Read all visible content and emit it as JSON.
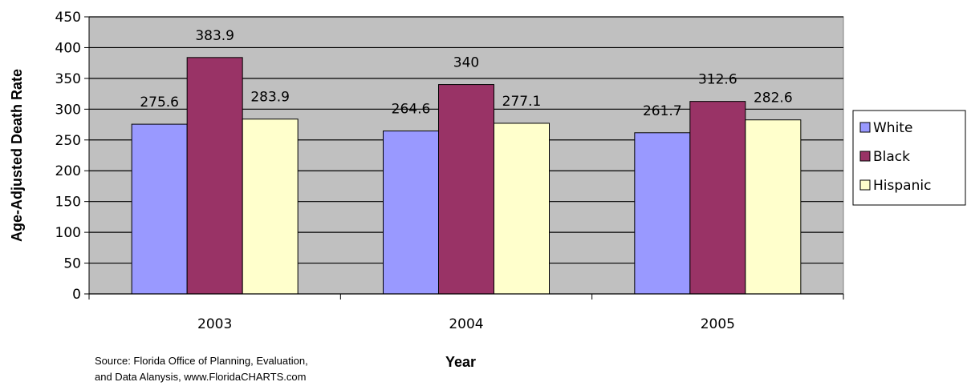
{
  "chart_data": {
    "type": "bar",
    "categories": [
      "2003",
      "2004",
      "2005"
    ],
    "series": [
      {
        "name": "White",
        "values": [
          275.6,
          264.6,
          261.7
        ],
        "color": "#9999FF"
      },
      {
        "name": "Black",
        "values": [
          383.9,
          340,
          312.6
        ],
        "color": "#993366"
      },
      {
        "name": "Hispanic",
        "values": [
          283.9,
          277.1,
          282.6
        ],
        "color": "#FFFFCC"
      }
    ],
    "value_labels": [
      [
        "275.6",
        "264.6",
        "261.7"
      ],
      [
        "383.9",
        "340",
        "312.6"
      ],
      [
        "283.9",
        "277.1",
        "282.6"
      ]
    ],
    "xlabel": "Year",
    "ylabel": "Age-Adjusted Death Rate",
    "ylim": [
      0,
      450
    ],
    "yticks": [
      "0",
      "50",
      "100",
      "150",
      "200",
      "250",
      "300",
      "350",
      "400",
      "450"
    ],
    "ytick_values": [
      0,
      50,
      100,
      150,
      200,
      250,
      300,
      350,
      400,
      450
    ],
    "grid": true,
    "plot_background": "#C0C0C0",
    "legend_position": "right"
  },
  "source_note": {
    "line1": "Source: Florida Office of Planning, Evaluation,",
    "line2": "and Data Alanysis, www.FloridaCHARTS.com"
  }
}
